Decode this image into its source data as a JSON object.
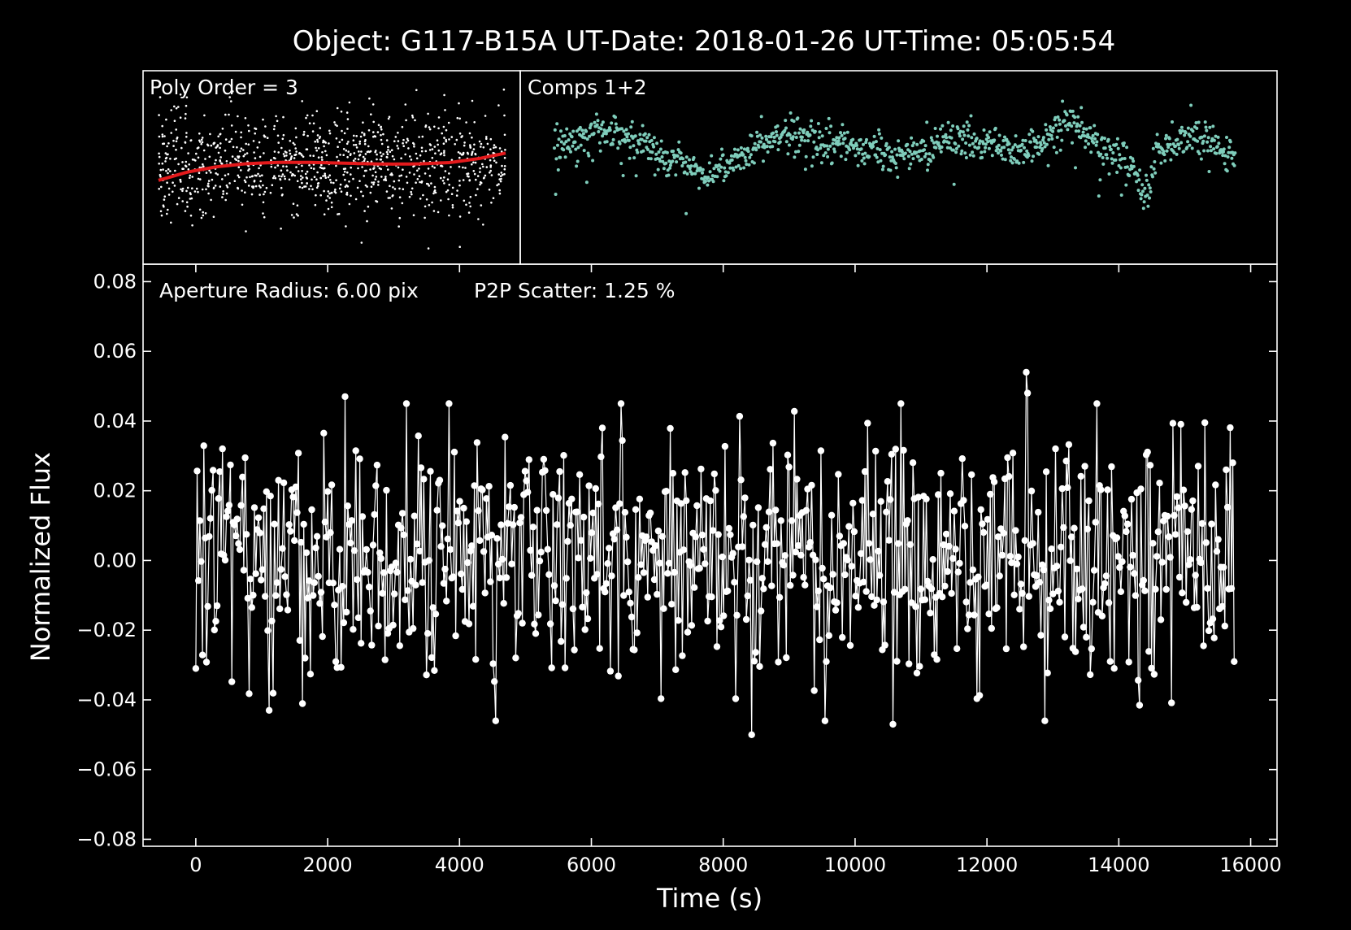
{
  "figure": {
    "title": "Object: G117-B15A   UT-Date: 2018-01-26   UT-Time: 05:05:54",
    "background": "#000000",
    "foreground": "#ffffff"
  },
  "chart_data": [
    {
      "type": "scatter",
      "panel": "poly-fit",
      "annotation": "Poly Order = 3",
      "point_color": "#ffffff",
      "fit_color": "#e41a1c",
      "xlim": [
        0,
        4750
      ],
      "ylim": [
        -0.06,
        0.055
      ],
      "fit_curve": {
        "x": [
          0,
          400,
          800,
          1200,
          1600,
          2000,
          2400,
          2800,
          3200,
          3600,
          4000,
          4400,
          4750
        ],
        "y": [
          -0.011,
          -0.0055,
          -0.002,
          0.0,
          0.0008,
          0.0009,
          0.0005,
          0.0,
          -0.0003,
          -0.0001,
          0.0008,
          0.0035,
          0.007
        ]
      },
      "points": {
        "count": 1000,
        "x_range": [
          0,
          4750
        ],
        "y_center": 0.0,
        "y_spread": 0.018
      },
      "grid": false,
      "axes_visible": false
    },
    {
      "type": "scatter",
      "panel": "comparison-stars",
      "annotation": "Comps 1+2",
      "point_color": "#7fcdbb",
      "xlim": [
        0,
        16000
      ],
      "ylim": [
        -0.06,
        0.055
      ],
      "trend": {
        "x": [
          0,
          600,
          1200,
          1800,
          2400,
          3000,
          3600,
          4200,
          4800,
          5400,
          6000,
          6600,
          7200,
          7800,
          8400,
          9000,
          9600,
          10200,
          10800,
          11400,
          11800,
          12000,
          12300,
          12600,
          13000,
          13400,
          13700,
          14000,
          14400,
          14800,
          15200,
          15600
        ],
        "y": [
          0.01,
          0.018,
          0.022,
          0.016,
          0.008,
          -0.002,
          -0.008,
          0.002,
          0.012,
          0.02,
          0.016,
          0.012,
          0.01,
          0.008,
          0.006,
          0.014,
          0.016,
          0.012,
          0.006,
          0.014,
          0.03,
          0.028,
          0.02,
          0.014,
          0.008,
          0.0,
          -0.024,
          0.004,
          0.014,
          0.02,
          0.012,
          0.006
        ]
      },
      "points": {
        "count": 1050,
        "x_range": [
          0,
          15800
        ],
        "y_spread": 0.006
      },
      "grid": false,
      "axes_visible": false
    },
    {
      "type": "line",
      "panel": "light-curve",
      "annotations": [
        "Aperture Radius: 6.00 pix",
        "P2P Scatter: 1.25 %"
      ],
      "xlabel": "Time (s)",
      "ylabel": "Normalized Flux",
      "xlim": [
        -800,
        16400
      ],
      "ylim": [
        -0.082,
        0.085
      ],
      "xticks": [
        0,
        2000,
        4000,
        6000,
        8000,
        10000,
        12000,
        14000,
        16000
      ],
      "xtick_labels": [
        "0",
        "2000",
        "4000",
        "6000",
        "8000",
        "10000",
        "12000",
        "14000",
        "16000"
      ],
      "yticks": [
        -0.08,
        -0.06,
        -0.04,
        -0.02,
        0.0,
        0.02,
        0.04,
        0.06,
        0.08
      ],
      "ytick_labels": [
        "−0.08",
        "−0.06",
        "−0.04",
        "−0.02",
        "0.00",
        "0.02",
        "0.04",
        "0.06",
        "0.08"
      ],
      "line_color": "#ffffff",
      "marker": "circle",
      "series": {
        "count": 780,
        "x_range": [
          0,
          15750
        ],
        "y_sigma": 0.018,
        "notable_points": [
          {
            "x": 0,
            "y": -0.031
          },
          {
            "x": 1120,
            "y": -0.043
          },
          {
            "x": 2260,
            "y": 0.047
          },
          {
            "x": 8440,
            "y": -0.05
          },
          {
            "x": 10580,
            "y": -0.047
          },
          {
            "x": 12600,
            "y": 0.054
          },
          {
            "x": 12620,
            "y": 0.048
          },
          {
            "x": 15750,
            "y": -0.029
          }
        ]
      },
      "grid": false,
      "legend": "none"
    }
  ]
}
